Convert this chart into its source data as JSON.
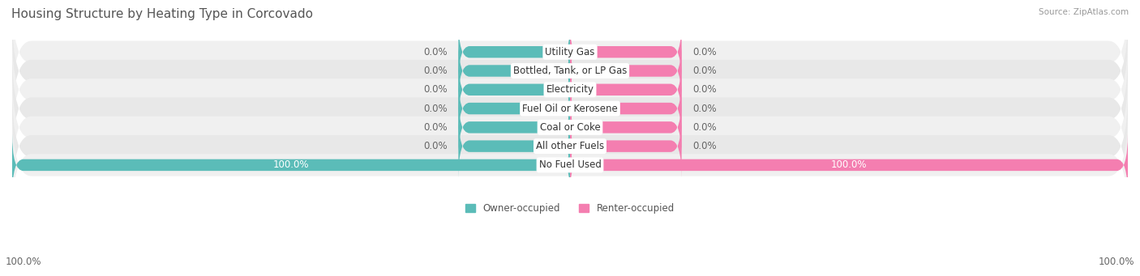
{
  "title": "Housing Structure by Heating Type in Corcovado",
  "source": "Source: ZipAtlas.com",
  "categories": [
    "Utility Gas",
    "Bottled, Tank, or LP Gas",
    "Electricity",
    "Fuel Oil or Kerosene",
    "Coal or Coke",
    "All other Fuels",
    "No Fuel Used"
  ],
  "owner_values": [
    0.0,
    0.0,
    0.0,
    0.0,
    0.0,
    0.0,
    100.0
  ],
  "renter_values": [
    0.0,
    0.0,
    0.0,
    0.0,
    0.0,
    0.0,
    100.0
  ],
  "owner_color": "#5bbcb8",
  "renter_color": "#f47eb0",
  "row_bg_even": "#f0f0f0",
  "row_bg_odd": "#e8e8e8",
  "label_bg_color": "#ffffff",
  "title_color": "#555555",
  "value_color_dark": "#666666",
  "value_color_white": "#ffffff",
  "source_color": "#999999",
  "legend_color_dark": "#555555",
  "fig_bg_color": "#ffffff",
  "bar_height": 0.62,
  "dummy_bar_width": 20,
  "xlim_abs": 100,
  "title_fontsize": 11,
  "label_fontsize": 8.5,
  "value_fontsize": 8.5,
  "source_fontsize": 7.5,
  "legend_fontsize": 8.5
}
